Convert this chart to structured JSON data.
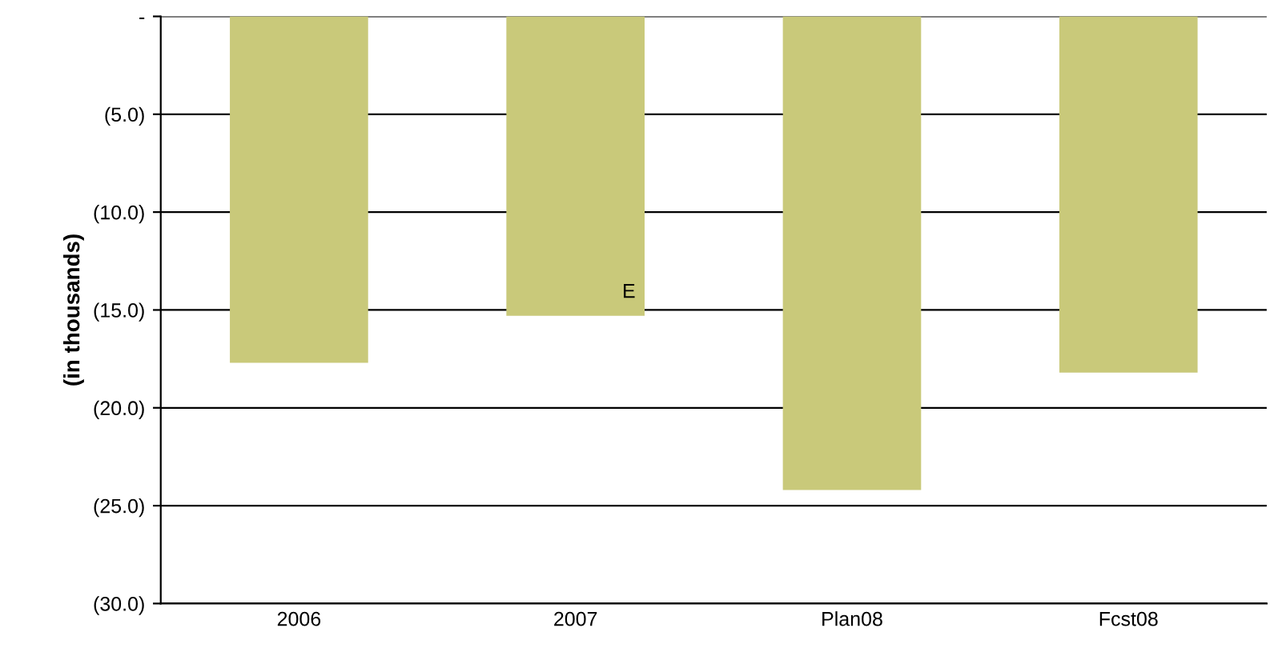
{
  "chart_data": {
    "type": "bar",
    "ylabel": "(in thousands)",
    "categories": [
      "2006",
      "2007",
      "Plan08",
      "Fcst08"
    ],
    "values": [
      -17.7,
      -15.3,
      -24.2,
      -18.2
    ],
    "color": "#c9c97a",
    "ylim": [
      -30,
      0
    ],
    "yticks": [
      {
        "value": 0,
        "label": "-"
      },
      {
        "value": -5,
        "label": "(5.0)"
      },
      {
        "value": -10,
        "label": "(10.0)"
      },
      {
        "value": -15,
        "label": "(15.0)"
      },
      {
        "value": -20,
        "label": "(20.0)"
      },
      {
        "value": -25,
        "label": "(25.0)"
      },
      {
        "value": -30,
        "label": "(30.0)"
      }
    ],
    "grid": "y",
    "annotations": [
      "E"
    ]
  }
}
